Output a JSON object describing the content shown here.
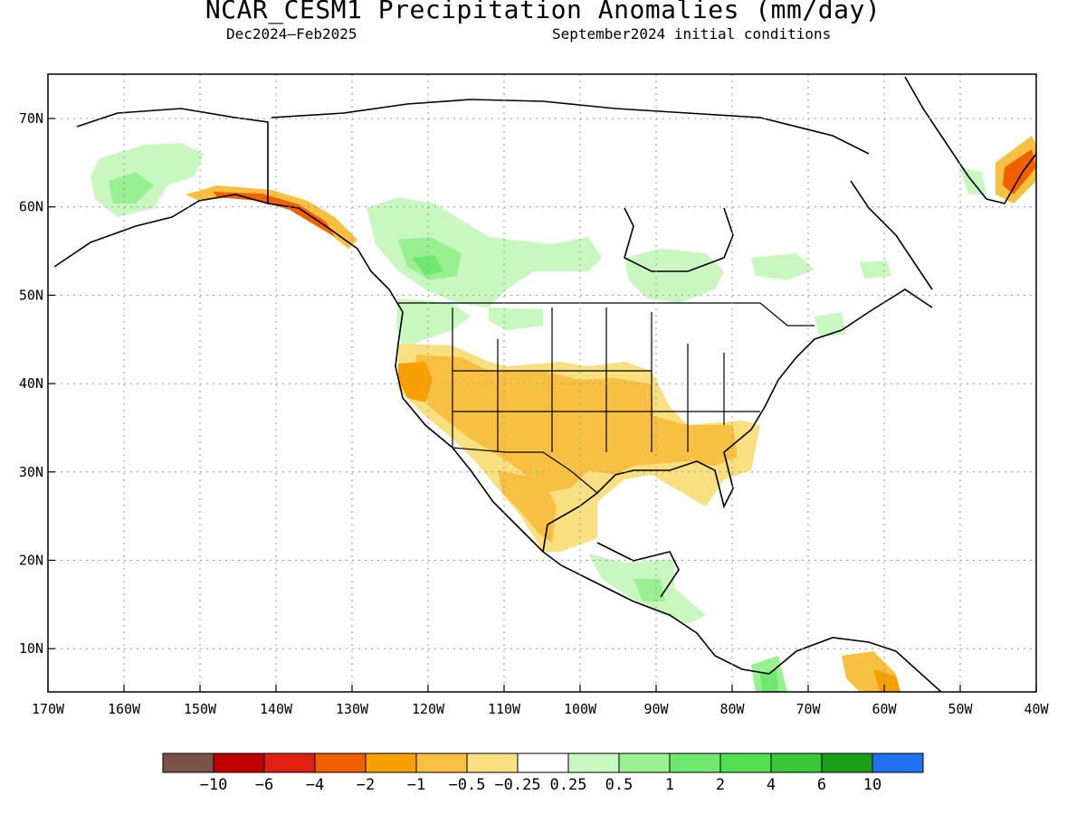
{
  "title": "NCAR_CESM1 Precipitation Anomalies (mm/day)",
  "subtitle_left": "Dec2024–Feb2025",
  "subtitle_right": "September2024 initial conditions",
  "lat_labels": [
    "70N",
    "60N",
    "50N",
    "40N",
    "30N",
    "20N",
    "10N"
  ],
  "lon_labels": [
    "170W",
    "160W",
    "150W",
    "140W",
    "130W",
    "120W",
    "110W",
    "100W",
    "90W",
    "80W",
    "70W",
    "60W",
    "50W",
    "40W"
  ],
  "colorbar": {
    "colors": [
      "#7a5248",
      "#c00000",
      "#e02010",
      "#f06000",
      "#f8a000",
      "#f8c040",
      "#f8e080",
      "#ffffff",
      "#c8f8c0",
      "#98f090",
      "#70e870",
      "#50e050",
      "#38c838",
      "#18a018",
      "#2070f0"
    ],
    "labels": [
      "−10",
      "−6",
      "−4",
      "−2",
      "−1",
      "−0.5",
      "−0.25",
      "0.25",
      "0.5",
      "1",
      "2",
      "4",
      "6",
      "10"
    ]
  },
  "regions": {
    "alaska": "Alaska",
    "canada": "Canada",
    "usa": "United States",
    "mexico": "Mexico",
    "greenland": "Greenland",
    "central_america": "Central America"
  }
}
